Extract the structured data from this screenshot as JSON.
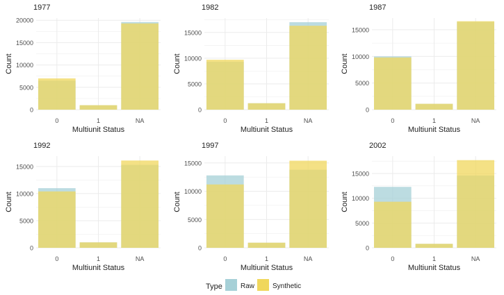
{
  "colors": {
    "raw": "#a6d0d7",
    "synthetic": "#f0d75c",
    "grid": "#ebebeb",
    "text": "#222222",
    "tick_text": "#4d4d4d"
  },
  "legend": {
    "title": "Type",
    "items": [
      {
        "label": "Raw",
        "color_key": "raw"
      },
      {
        "label": "Synthetic",
        "color_key": "synthetic"
      }
    ],
    "placement": "bottom"
  },
  "chart_data": [
    {
      "type": "bar",
      "title": "1977",
      "xlabel": "Multiunit Status",
      "ylabel": "Count",
      "categories": [
        "0",
        "1",
        "NA"
      ],
      "yticks": [
        0,
        5000,
        10000,
        15000,
        20000
      ],
      "ylim": [
        0,
        20500
      ],
      "grid": true,
      "series": [
        {
          "name": "Raw",
          "values": [
            6500,
            1000,
            19600
          ]
        },
        {
          "name": "Synthetic",
          "values": [
            7000,
            1000,
            19300
          ]
        }
      ]
    },
    {
      "type": "bar",
      "title": "1982",
      "xlabel": "Multiunit Status",
      "ylabel": "Count",
      "categories": [
        "0",
        "1",
        "NA"
      ],
      "yticks": [
        0,
        5000,
        10000,
        15000
      ],
      "ylim": [
        0,
        17800
      ],
      "grid": true,
      "series": [
        {
          "name": "Raw",
          "values": [
            9300,
            1250,
            17000
          ]
        },
        {
          "name": "Synthetic",
          "values": [
            9700,
            1250,
            16300
          ]
        }
      ]
    },
    {
      "type": "bar",
      "title": "1987",
      "xlabel": "Multiunit Status",
      "ylabel": "Count",
      "categories": [
        "0",
        "1",
        "NA"
      ],
      "yticks": [
        0,
        5000,
        10000,
        15000
      ],
      "ylim": [
        0,
        17200
      ],
      "grid": true,
      "series": [
        {
          "name": "Raw",
          "values": [
            10000,
            1100,
            16500
          ]
        },
        {
          "name": "Synthetic",
          "values": [
            9800,
            1100,
            16600
          ]
        }
      ]
    },
    {
      "type": "bar",
      "title": "1992",
      "xlabel": "Multiunit Status",
      "ylabel": "Count",
      "categories": [
        "0",
        "1",
        "NA"
      ],
      "yticks": [
        0,
        5000,
        10000,
        15000
      ],
      "ylim": [
        0,
        16900
      ],
      "grid": true,
      "series": [
        {
          "name": "Raw",
          "values": [
            11000,
            1000,
            15300
          ]
        },
        {
          "name": "Synthetic",
          "values": [
            10400,
            1000,
            16100
          ]
        }
      ]
    },
    {
      "type": "bar",
      "title": "1997",
      "xlabel": "Multiunit Status",
      "ylabel": "Count",
      "categories": [
        "0",
        "1",
        "NA"
      ],
      "yticks": [
        0,
        5000,
        10000,
        15000
      ],
      "ylim": [
        0,
        16200
      ],
      "grid": true,
      "series": [
        {
          "name": "Raw",
          "values": [
            12800,
            900,
            13800
          ]
        },
        {
          "name": "Synthetic",
          "values": [
            11200,
            900,
            15400
          ]
        }
      ]
    },
    {
      "type": "bar",
      "title": "2002",
      "xlabel": "Multiunit Status",
      "ylabel": "Count",
      "categories": [
        "0",
        "1",
        "NA"
      ],
      "yticks": [
        0,
        5000,
        10000,
        15000
      ],
      "ylim": [
        0,
        18500
      ],
      "grid": true,
      "series": [
        {
          "name": "Raw",
          "values": [
            12300,
            800,
            14600
          ]
        },
        {
          "name": "Synthetic",
          "values": [
            9300,
            800,
            17700
          ]
        }
      ]
    }
  ]
}
